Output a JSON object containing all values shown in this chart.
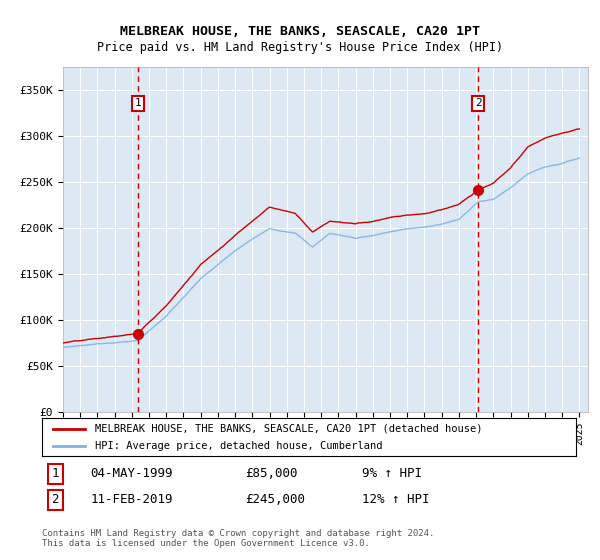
{
  "title": "MELBREAK HOUSE, THE BANKS, SEASCALE, CA20 1PT",
  "subtitle": "Price paid vs. HM Land Registry's House Price Index (HPI)",
  "legend_line1": "MELBREAK HOUSE, THE BANKS, SEASCALE, CA20 1PT (detached house)",
  "legend_line2": "HPI: Average price, detached house, Cumberland",
  "footnote": "Contains HM Land Registry data © Crown copyright and database right 2024.\nThis data is licensed under the Open Government Licence v3.0.",
  "sale1_date": "04-MAY-1999",
  "sale1_price": "£85,000",
  "sale1_hpi": "9% ↑ HPI",
  "sale2_date": "11-FEB-2019",
  "sale2_price": "£245,000",
  "sale2_hpi": "12% ↑ HPI",
  "sale1_year": 1999.35,
  "sale1_value": 85000,
  "sale2_year": 2019.12,
  "sale2_value": 245000,
  "hpi_color": "#7eb4e2",
  "price_color": "#cc0000",
  "vline_color": "#cc0000",
  "bg_color": "#dce9f5",
  "ylim": [
    0,
    375000
  ],
  "xlim_start": 1995.0,
  "xlim_end": 2025.5,
  "yticks": [
    0,
    50000,
    100000,
    150000,
    200000,
    250000,
    300000,
    350000
  ],
  "ytick_labels": [
    "£0",
    "£50K",
    "£100K",
    "£150K",
    "£200K",
    "£250K",
    "£300K",
    "£350K"
  ],
  "xticks": [
    1995,
    1996,
    1997,
    1998,
    1999,
    2000,
    2001,
    2002,
    2003,
    2004,
    2005,
    2006,
    2007,
    2008,
    2009,
    2010,
    2011,
    2012,
    2013,
    2014,
    2015,
    2016,
    2017,
    2018,
    2019,
    2020,
    2021,
    2022,
    2023,
    2024,
    2025
  ]
}
